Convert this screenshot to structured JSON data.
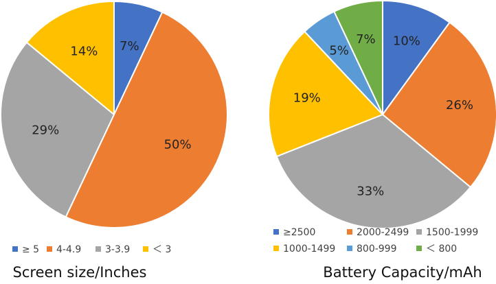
{
  "chart_data": [
    {
      "type": "pie",
      "title": "Screen size/Inches",
      "slices": [
        {
          "label": "≥ 5",
          "value": 7,
          "display": "7%",
          "color": "#4472C4"
        },
        {
          "label": "4-4.9",
          "value": 50,
          "display": "50%",
          "color": "#ED7D31"
        },
        {
          "label": "3-3.9",
          "value": 29,
          "display": "29%",
          "color": "#A5A5A5"
        },
        {
          "label": "＜ 3",
          "value": 14,
          "display": "14%",
          "color": "#FFC000"
        }
      ],
      "legend_position": "bottom"
    },
    {
      "type": "pie",
      "title": "Battery Capacity/mAh",
      "slices": [
        {
          "label": "≥2500",
          "value": 10,
          "display": "10%",
          "color": "#4472C4"
        },
        {
          "label": "2000-2499",
          "value": 26,
          "display": "26%",
          "color": "#ED7D31"
        },
        {
          "label": "1500-1999",
          "value": 33,
          "display": "33%",
          "color": "#A5A5A5"
        },
        {
          "label": "1000-1499",
          "value": 19,
          "display": "19%",
          "color": "#FFC000"
        },
        {
          "label": "800-999",
          "value": 5,
          "display": "5%",
          "color": "#5B9BD5"
        },
        {
          "label": "＜ 800",
          "value": 7,
          "display": "7%",
          "color": "#70AD47"
        }
      ],
      "legend_position": "bottom"
    }
  ]
}
